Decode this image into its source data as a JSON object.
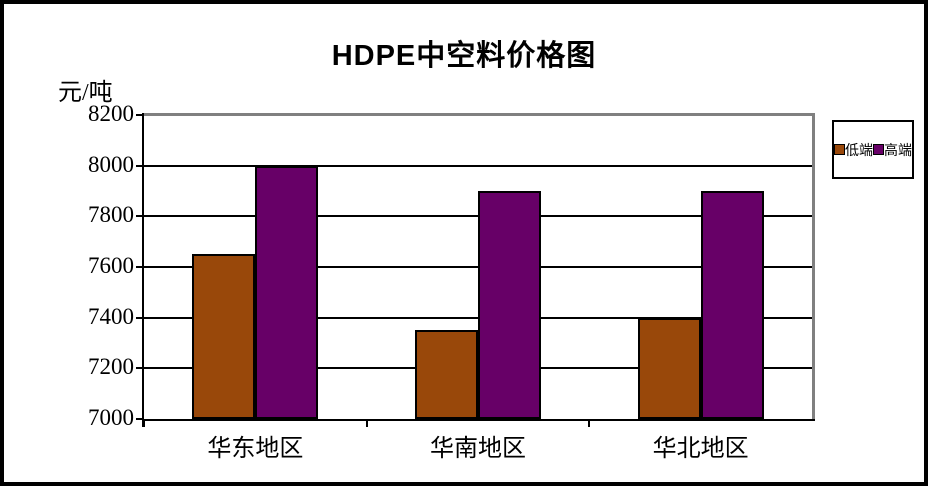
{
  "frame": {
    "background": "#ffffff",
    "border_color": "#000000"
  },
  "chart_data": {
    "type": "bar",
    "title": "HDPE中空料价格图",
    "y_unit_label": "元/吨",
    "categories": [
      "华东地区",
      "华南地区",
      "华北地区"
    ],
    "series": [
      {
        "name": "低端",
        "color": "#99480A",
        "values": [
          7650,
          7350,
          7400
        ]
      },
      {
        "name": "高端",
        "color": "#670067",
        "values": [
          8000,
          7900,
          7900
        ]
      }
    ],
    "ylim": [
      7000,
      8200
    ],
    "yticks": [
      7000,
      7200,
      7400,
      7600,
      7800,
      8000,
      8200
    ],
    "grid": "horizontal",
    "gridline_color": "#000000",
    "axis_color": "#000000",
    "plot_border_color": "#808080",
    "legend_position": "right",
    "legend_border_color": "#000000"
  }
}
